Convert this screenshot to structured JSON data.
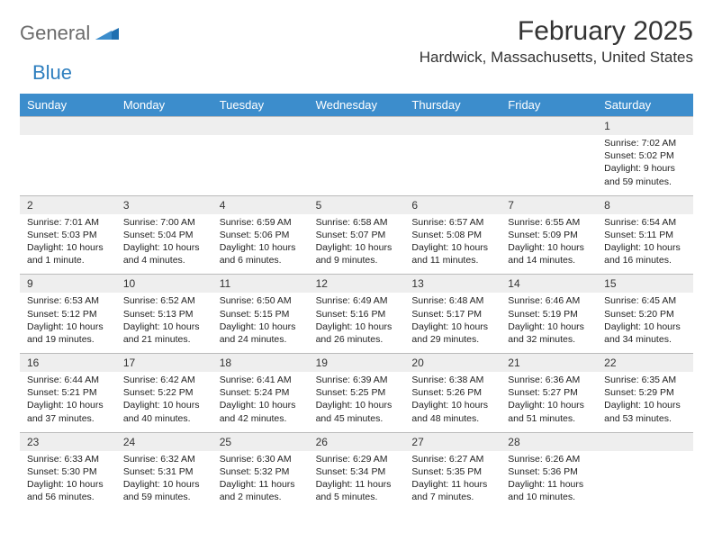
{
  "brand": {
    "part1": "General",
    "part2": "Blue"
  },
  "title": "February 2025",
  "location": "Hardwick, Massachusetts, United States",
  "colors": {
    "header_bg": "#3c8dcc",
    "header_text": "#ffffff",
    "daynum_bg": "#eeeeee",
    "divider": "#bbbbbb",
    "text": "#222222",
    "logo_gray": "#6b6b6b",
    "logo_blue": "#2f7fbf"
  },
  "day_names": [
    "Sunday",
    "Monday",
    "Tuesday",
    "Wednesday",
    "Thursday",
    "Friday",
    "Saturday"
  ],
  "weeks": [
    {
      "nums": [
        "",
        "",
        "",
        "",
        "",
        "",
        "1"
      ],
      "cells": [
        {
          "sunrise": "",
          "sunset": "",
          "daylight": ""
        },
        {
          "sunrise": "",
          "sunset": "",
          "daylight": ""
        },
        {
          "sunrise": "",
          "sunset": "",
          "daylight": ""
        },
        {
          "sunrise": "",
          "sunset": "",
          "daylight": ""
        },
        {
          "sunrise": "",
          "sunset": "",
          "daylight": ""
        },
        {
          "sunrise": "",
          "sunset": "",
          "daylight": ""
        },
        {
          "sunrise": "Sunrise: 7:02 AM",
          "sunset": "Sunset: 5:02 PM",
          "daylight": "Daylight: 9 hours and 59 minutes."
        }
      ]
    },
    {
      "nums": [
        "2",
        "3",
        "4",
        "5",
        "6",
        "7",
        "8"
      ],
      "cells": [
        {
          "sunrise": "Sunrise: 7:01 AM",
          "sunset": "Sunset: 5:03 PM",
          "daylight": "Daylight: 10 hours and 1 minute."
        },
        {
          "sunrise": "Sunrise: 7:00 AM",
          "sunset": "Sunset: 5:04 PM",
          "daylight": "Daylight: 10 hours and 4 minutes."
        },
        {
          "sunrise": "Sunrise: 6:59 AM",
          "sunset": "Sunset: 5:06 PM",
          "daylight": "Daylight: 10 hours and 6 minutes."
        },
        {
          "sunrise": "Sunrise: 6:58 AM",
          "sunset": "Sunset: 5:07 PM",
          "daylight": "Daylight: 10 hours and 9 minutes."
        },
        {
          "sunrise": "Sunrise: 6:57 AM",
          "sunset": "Sunset: 5:08 PM",
          "daylight": "Daylight: 10 hours and 11 minutes."
        },
        {
          "sunrise": "Sunrise: 6:55 AM",
          "sunset": "Sunset: 5:09 PM",
          "daylight": "Daylight: 10 hours and 14 minutes."
        },
        {
          "sunrise": "Sunrise: 6:54 AM",
          "sunset": "Sunset: 5:11 PM",
          "daylight": "Daylight: 10 hours and 16 minutes."
        }
      ]
    },
    {
      "nums": [
        "9",
        "10",
        "11",
        "12",
        "13",
        "14",
        "15"
      ],
      "cells": [
        {
          "sunrise": "Sunrise: 6:53 AM",
          "sunset": "Sunset: 5:12 PM",
          "daylight": "Daylight: 10 hours and 19 minutes."
        },
        {
          "sunrise": "Sunrise: 6:52 AM",
          "sunset": "Sunset: 5:13 PM",
          "daylight": "Daylight: 10 hours and 21 minutes."
        },
        {
          "sunrise": "Sunrise: 6:50 AM",
          "sunset": "Sunset: 5:15 PM",
          "daylight": "Daylight: 10 hours and 24 minutes."
        },
        {
          "sunrise": "Sunrise: 6:49 AM",
          "sunset": "Sunset: 5:16 PM",
          "daylight": "Daylight: 10 hours and 26 minutes."
        },
        {
          "sunrise": "Sunrise: 6:48 AM",
          "sunset": "Sunset: 5:17 PM",
          "daylight": "Daylight: 10 hours and 29 minutes."
        },
        {
          "sunrise": "Sunrise: 6:46 AM",
          "sunset": "Sunset: 5:19 PM",
          "daylight": "Daylight: 10 hours and 32 minutes."
        },
        {
          "sunrise": "Sunrise: 6:45 AM",
          "sunset": "Sunset: 5:20 PM",
          "daylight": "Daylight: 10 hours and 34 minutes."
        }
      ]
    },
    {
      "nums": [
        "16",
        "17",
        "18",
        "19",
        "20",
        "21",
        "22"
      ],
      "cells": [
        {
          "sunrise": "Sunrise: 6:44 AM",
          "sunset": "Sunset: 5:21 PM",
          "daylight": "Daylight: 10 hours and 37 minutes."
        },
        {
          "sunrise": "Sunrise: 6:42 AM",
          "sunset": "Sunset: 5:22 PM",
          "daylight": "Daylight: 10 hours and 40 minutes."
        },
        {
          "sunrise": "Sunrise: 6:41 AM",
          "sunset": "Sunset: 5:24 PM",
          "daylight": "Daylight: 10 hours and 42 minutes."
        },
        {
          "sunrise": "Sunrise: 6:39 AM",
          "sunset": "Sunset: 5:25 PM",
          "daylight": "Daylight: 10 hours and 45 minutes."
        },
        {
          "sunrise": "Sunrise: 6:38 AM",
          "sunset": "Sunset: 5:26 PM",
          "daylight": "Daylight: 10 hours and 48 minutes."
        },
        {
          "sunrise": "Sunrise: 6:36 AM",
          "sunset": "Sunset: 5:27 PM",
          "daylight": "Daylight: 10 hours and 51 minutes."
        },
        {
          "sunrise": "Sunrise: 6:35 AM",
          "sunset": "Sunset: 5:29 PM",
          "daylight": "Daylight: 10 hours and 53 minutes."
        }
      ]
    },
    {
      "nums": [
        "23",
        "24",
        "25",
        "26",
        "27",
        "28",
        ""
      ],
      "cells": [
        {
          "sunrise": "Sunrise: 6:33 AM",
          "sunset": "Sunset: 5:30 PM",
          "daylight": "Daylight: 10 hours and 56 minutes."
        },
        {
          "sunrise": "Sunrise: 6:32 AM",
          "sunset": "Sunset: 5:31 PM",
          "daylight": "Daylight: 10 hours and 59 minutes."
        },
        {
          "sunrise": "Sunrise: 6:30 AM",
          "sunset": "Sunset: 5:32 PM",
          "daylight": "Daylight: 11 hours and 2 minutes."
        },
        {
          "sunrise": "Sunrise: 6:29 AM",
          "sunset": "Sunset: 5:34 PM",
          "daylight": "Daylight: 11 hours and 5 minutes."
        },
        {
          "sunrise": "Sunrise: 6:27 AM",
          "sunset": "Sunset: 5:35 PM",
          "daylight": "Daylight: 11 hours and 7 minutes."
        },
        {
          "sunrise": "Sunrise: 6:26 AM",
          "sunset": "Sunset: 5:36 PM",
          "daylight": "Daylight: 11 hours and 10 minutes."
        },
        {
          "sunrise": "",
          "sunset": "",
          "daylight": ""
        }
      ]
    }
  ]
}
